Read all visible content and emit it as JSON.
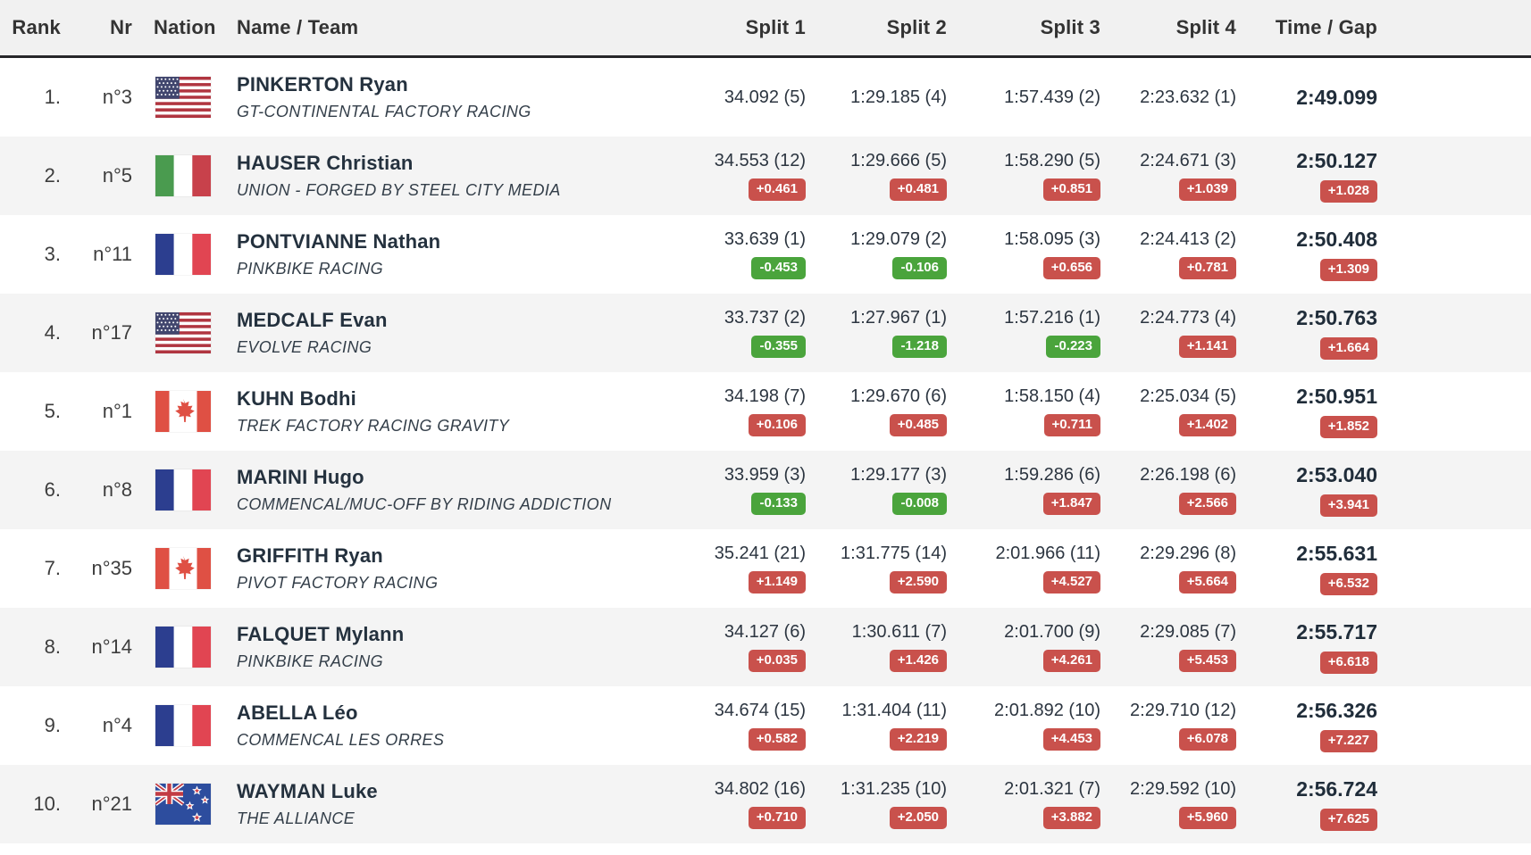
{
  "table": {
    "columns": [
      "Rank",
      "Nr",
      "Nation",
      "Name / Team",
      "Split 1",
      "Split 2",
      "Split 3",
      "Split 4",
      "Time / Gap"
    ],
    "rows": [
      {
        "rank": "1.",
        "nr": "n°3",
        "nation": "usa",
        "name": "PINKERTON Ryan",
        "team": "GT-CONTINENTAL FACTORY RACING",
        "splits": [
          {
            "value": "34.092 (5)",
            "gap": ""
          },
          {
            "value": "1:29.185 (4)",
            "gap": ""
          },
          {
            "value": "1:57.439 (2)",
            "gap": ""
          },
          {
            "value": "2:23.632 (1)",
            "gap": ""
          }
        ],
        "time": {
          "value": "2:49.099",
          "gap": ""
        }
      },
      {
        "rank": "2.",
        "nr": "n°5",
        "nation": "italy",
        "name": "HAUSER Christian",
        "team": "UNION - FORGED BY STEEL CITY MEDIA",
        "splits": [
          {
            "value": "34.553 (12)",
            "gap": "+0.461"
          },
          {
            "value": "1:29.666 (5)",
            "gap": "+0.481"
          },
          {
            "value": "1:58.290 (5)",
            "gap": "+0.851"
          },
          {
            "value": "2:24.671 (3)",
            "gap": "+1.039"
          }
        ],
        "time": {
          "value": "2:50.127",
          "gap": "+1.028"
        }
      },
      {
        "rank": "3.",
        "nr": "n°11",
        "nation": "france",
        "name": "PONTVIANNE Nathan",
        "team": "PINKBIKE RACING",
        "splits": [
          {
            "value": "33.639 (1)",
            "gap": "-0.453"
          },
          {
            "value": "1:29.079 (2)",
            "gap": "-0.106"
          },
          {
            "value": "1:58.095 (3)",
            "gap": "+0.656"
          },
          {
            "value": "2:24.413 (2)",
            "gap": "+0.781"
          }
        ],
        "time": {
          "value": "2:50.408",
          "gap": "+1.309"
        }
      },
      {
        "rank": "4.",
        "nr": "n°17",
        "nation": "usa",
        "name": "MEDCALF Evan",
        "team": "EVOLVE RACING",
        "splits": [
          {
            "value": "33.737 (2)",
            "gap": "-0.355"
          },
          {
            "value": "1:27.967 (1)",
            "gap": "-1.218"
          },
          {
            "value": "1:57.216 (1)",
            "gap": "-0.223"
          },
          {
            "value": "2:24.773 (4)",
            "gap": "+1.141"
          }
        ],
        "time": {
          "value": "2:50.763",
          "gap": "+1.664"
        }
      },
      {
        "rank": "5.",
        "nr": "n°1",
        "nation": "canada",
        "name": "KUHN Bodhi",
        "team": "TREK FACTORY RACING GRAVITY",
        "splits": [
          {
            "value": "34.198 (7)",
            "gap": "+0.106"
          },
          {
            "value": "1:29.670 (6)",
            "gap": "+0.485"
          },
          {
            "value": "1:58.150 (4)",
            "gap": "+0.711"
          },
          {
            "value": "2:25.034 (5)",
            "gap": "+1.402"
          }
        ],
        "time": {
          "value": "2:50.951",
          "gap": "+1.852"
        }
      },
      {
        "rank": "6.",
        "nr": "n°8",
        "nation": "france",
        "name": "MARINI Hugo",
        "team": "COMMENCAL/MUC-OFF BY RIDING ADDICTION",
        "splits": [
          {
            "value": "33.959 (3)",
            "gap": "-0.133"
          },
          {
            "value": "1:29.177 (3)",
            "gap": "-0.008"
          },
          {
            "value": "1:59.286 (6)",
            "gap": "+1.847"
          },
          {
            "value": "2:26.198 (6)",
            "gap": "+2.566"
          }
        ],
        "time": {
          "value": "2:53.040",
          "gap": "+3.941"
        }
      },
      {
        "rank": "7.",
        "nr": "n°35",
        "nation": "canada",
        "name": "GRIFFITH Ryan",
        "team": "PIVOT FACTORY RACING",
        "splits": [
          {
            "value": "35.241 (21)",
            "gap": "+1.149"
          },
          {
            "value": "1:31.775 (14)",
            "gap": "+2.590"
          },
          {
            "value": "2:01.966 (11)",
            "gap": "+4.527"
          },
          {
            "value": "2:29.296 (8)",
            "gap": "+5.664"
          }
        ],
        "time": {
          "value": "2:55.631",
          "gap": "+6.532"
        }
      },
      {
        "rank": "8.",
        "nr": "n°14",
        "nation": "france",
        "name": "FALQUET Mylann",
        "team": "PINKBIKE RACING",
        "splits": [
          {
            "value": "34.127 (6)",
            "gap": "+0.035"
          },
          {
            "value": "1:30.611 (7)",
            "gap": "+1.426"
          },
          {
            "value": "2:01.700 (9)",
            "gap": "+4.261"
          },
          {
            "value": "2:29.085 (7)",
            "gap": "+5.453"
          }
        ],
        "time": {
          "value": "2:55.717",
          "gap": "+6.618"
        }
      },
      {
        "rank": "9.",
        "nr": "n°4",
        "nation": "france",
        "name": "ABELLA Léo",
        "team": "COMMENCAL LES ORRES",
        "splits": [
          {
            "value": "34.674 (15)",
            "gap": "+0.582"
          },
          {
            "value": "1:31.404 (11)",
            "gap": "+2.219"
          },
          {
            "value": "2:01.892 (10)",
            "gap": "+4.453"
          },
          {
            "value": "2:29.710 (12)",
            "gap": "+6.078"
          }
        ],
        "time": {
          "value": "2:56.326",
          "gap": "+7.227"
        }
      },
      {
        "rank": "10.",
        "nr": "n°21",
        "nation": "new-zealand",
        "name": "WAYMAN Luke",
        "team": "THE ALLIANCE",
        "splits": [
          {
            "value": "34.802 (16)",
            "gap": "+0.710"
          },
          {
            "value": "1:31.235 (10)",
            "gap": "+2.050"
          },
          {
            "value": "2:01.321 (7)",
            "gap": "+3.882"
          },
          {
            "value": "2:29.592 (10)",
            "gap": "+5.960"
          }
        ],
        "time": {
          "value": "2:56.724",
          "gap": "+7.625"
        }
      }
    ]
  },
  "colors": {
    "badge_positive": "#c9514c",
    "badge_negative": "#4aa43c",
    "header_bg": "#f1f1f1",
    "row_alt_bg": "#f4f4f4",
    "name_text": "#24313e",
    "value_text": "#2c3540"
  }
}
